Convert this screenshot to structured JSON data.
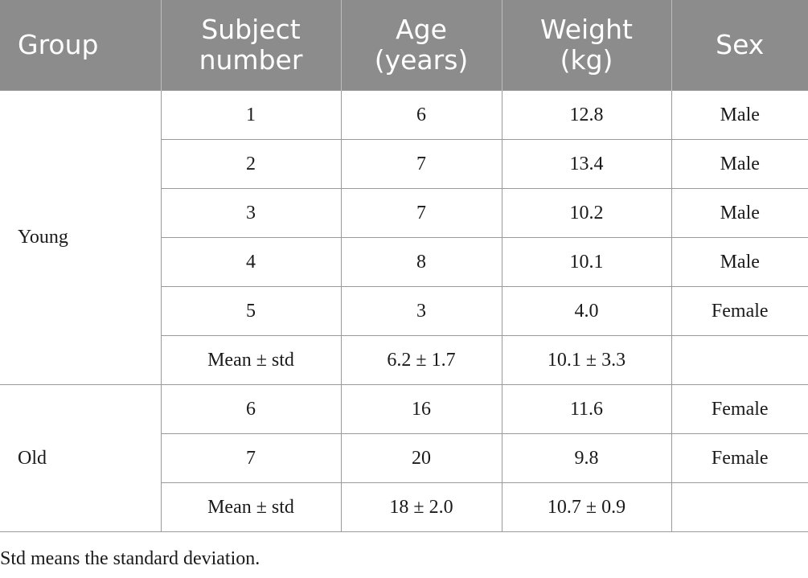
{
  "table": {
    "headers": [
      {
        "line1": "Group",
        "line2": ""
      },
      {
        "line1": "Subject",
        "line2": "number"
      },
      {
        "line1": "Age",
        "line2": "(years)"
      },
      {
        "line1": "Weight",
        "line2": "(kg)"
      },
      {
        "line1": "Sex",
        "line2": ""
      }
    ],
    "groups": [
      {
        "name": "Young",
        "rows": [
          {
            "subject": "1",
            "age": "6",
            "weight": "12.8",
            "sex": "Male"
          },
          {
            "subject": "2",
            "age": "7",
            "weight": "13.4",
            "sex": "Male"
          },
          {
            "subject": "3",
            "age": "7",
            "weight": "10.2",
            "sex": "Male"
          },
          {
            "subject": "4",
            "age": "8",
            "weight": "10.1",
            "sex": "Male"
          },
          {
            "subject": "5",
            "age": "3",
            "weight": "4.0",
            "sex": "Female"
          },
          {
            "subject": "Mean ± std",
            "age": "6.2 ± 1.7",
            "weight": "10.1 ± 3.3",
            "sex": ""
          }
        ]
      },
      {
        "name": "Old",
        "rows": [
          {
            "subject": "6",
            "age": "16",
            "weight": "11.6",
            "sex": "Female"
          },
          {
            "subject": "7",
            "age": "20",
            "weight": "9.8",
            "sex": "Female"
          },
          {
            "subject": "Mean ± std",
            "age": "18 ± 2.0",
            "weight": "10.7 ± 0.9",
            "sex": ""
          }
        ]
      }
    ]
  },
  "footnote": "Std means the standard deviation."
}
